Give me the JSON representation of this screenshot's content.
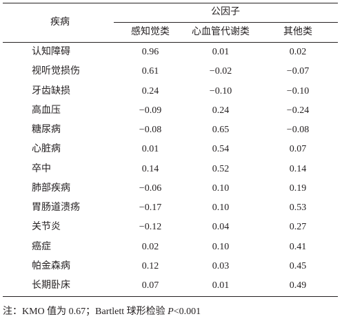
{
  "table": {
    "header": {
      "disease": "疾病",
      "group": "公因子",
      "columns": [
        "感知觉类",
        "心血管代谢类",
        "其他类"
      ]
    },
    "rows": [
      [
        "认知障碍",
        "0.96",
        "0.01",
        "0.02"
      ],
      [
        "视听觉损伤",
        "0.61",
        "−0.02",
        "−0.07"
      ],
      [
        "牙齿缺损",
        "0.24",
        "−0.10",
        "−0.10"
      ],
      [
        "高血压",
        "−0.09",
        "0.24",
        "−0.24"
      ],
      [
        "糖尿病",
        "−0.08",
        "0.65",
        "−0.08"
      ],
      [
        "心脏病",
        "0.01",
        "0.54",
        "0.07"
      ],
      [
        "卒中",
        "0.14",
        "0.52",
        "0.14"
      ],
      [
        "肺部疾病",
        "−0.06",
        "0.10",
        "0.19"
      ],
      [
        "胃肠道溃疡",
        "−0.17",
        "0.10",
        "0.53"
      ],
      [
        "关节炎",
        "−0.12",
        "0.04",
        "0.27"
      ],
      [
        "癌症",
        "0.02",
        "0.10",
        "0.41"
      ],
      [
        "帕金森病",
        "0.12",
        "0.03",
        "0.45"
      ],
      [
        "长期卧床",
        "0.07",
        "0.01",
        "0.49"
      ]
    ],
    "note": [
      "注：KMO 值为 0.67；Bartlett 球形检验 ",
      "P",
      "<0.001"
    ]
  }
}
